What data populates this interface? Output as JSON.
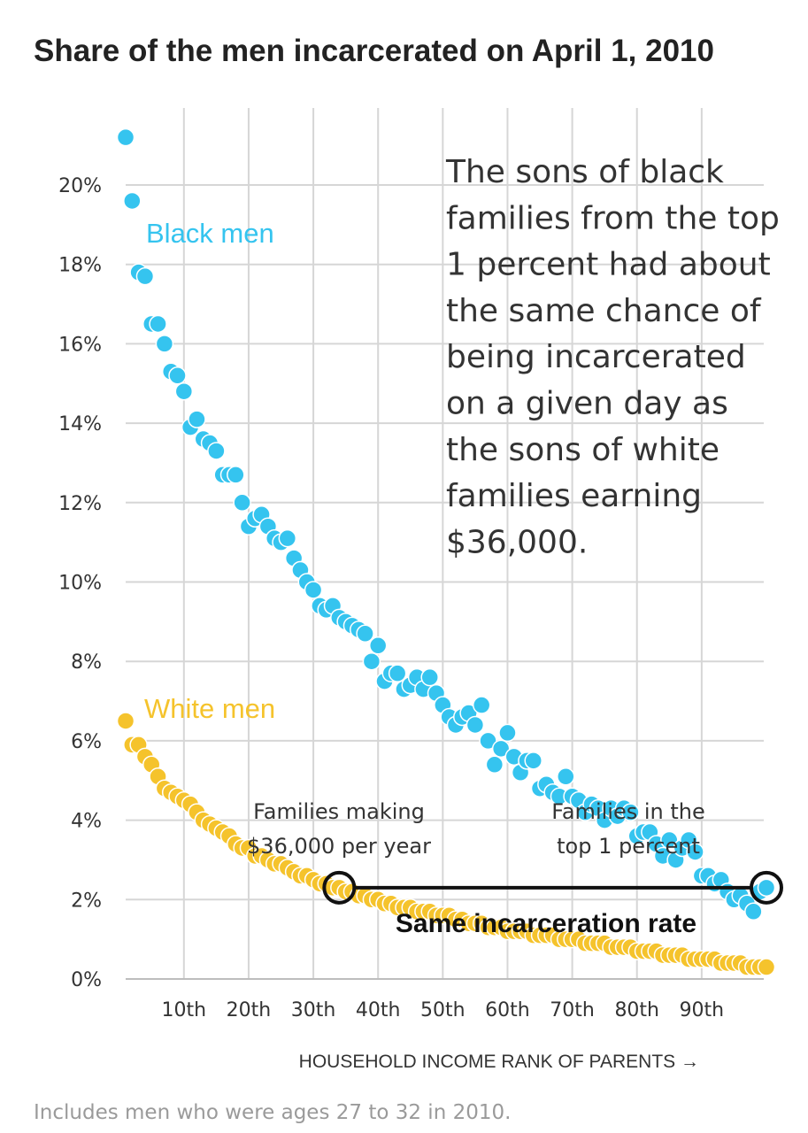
{
  "title": "Share of the men incarcerated on April 1, 2010",
  "footnote": "Includes men who were ages 27 to 32 in 2010.",
  "colors": {
    "black_men": "#35c4ef",
    "white_men": "#f5c32c",
    "grid": "#d6d6d6",
    "text": "#333333"
  },
  "chart_data": {
    "type": "scatter",
    "xlabel": "HOUSEHOLD INCOME RANK OF PARENTS →",
    "ylabel": "",
    "xlim": [
      1,
      100
    ],
    "ylim": [
      0,
      0.22
    ],
    "x_ticks": [
      10,
      20,
      30,
      40,
      50,
      60,
      70,
      80,
      90
    ],
    "x_tick_labels": [
      "10th",
      "20th",
      "30th",
      "40th",
      "50th",
      "60th",
      "70th",
      "80th",
      "90th"
    ],
    "y_ticks": [
      0,
      0.02,
      0.04,
      0.06,
      0.08,
      0.1,
      0.12,
      0.14,
      0.16,
      0.18,
      0.2
    ],
    "y_tick_labels": [
      "0%",
      "2%",
      "4%",
      "6%",
      "8%",
      "10%",
      "12%",
      "14%",
      "16%",
      "18%",
      "20%"
    ],
    "grid": true,
    "series": [
      {
        "name": "Black men",
        "color": "#35c4ef",
        "x": [
          1,
          2,
          3,
          4,
          5,
          6,
          7,
          8,
          9,
          10,
          11,
          12,
          13,
          14,
          15,
          16,
          17,
          18,
          19,
          20,
          21,
          22,
          23,
          24,
          25,
          26,
          27,
          28,
          29,
          30,
          31,
          32,
          33,
          34,
          35,
          36,
          37,
          38,
          39,
          40,
          41,
          42,
          43,
          44,
          45,
          46,
          47,
          48,
          49,
          50,
          51,
          52,
          53,
          54,
          55,
          56,
          57,
          58,
          59,
          60,
          61,
          62,
          63,
          64,
          65,
          66,
          67,
          68,
          69,
          70,
          71,
          72,
          73,
          74,
          75,
          76,
          77,
          78,
          79,
          80,
          81,
          82,
          83,
          84,
          85,
          86,
          87,
          88,
          89,
          90,
          91,
          92,
          93,
          94,
          95,
          96,
          97,
          98,
          99,
          100
        ],
        "y": [
          0.212,
          0.196,
          0.178,
          0.177,
          0.165,
          0.165,
          0.16,
          0.153,
          0.152,
          0.148,
          0.139,
          0.141,
          0.136,
          0.135,
          0.133,
          0.127,
          0.127,
          0.127,
          0.12,
          0.114,
          0.116,
          0.117,
          0.114,
          0.111,
          0.11,
          0.111,
          0.106,
          0.103,
          0.1,
          0.098,
          0.094,
          0.093,
          0.094,
          0.091,
          0.09,
          0.089,
          0.088,
          0.087,
          0.08,
          0.084,
          0.075,
          0.077,
          0.077,
          0.073,
          0.074,
          0.076,
          0.073,
          0.076,
          0.072,
          0.069,
          0.066,
          0.064,
          0.066,
          0.067,
          0.064,
          0.069,
          0.06,
          0.054,
          0.058,
          0.062,
          0.056,
          0.052,
          0.055,
          0.055,
          0.048,
          0.049,
          0.047,
          0.046,
          0.051,
          0.046,
          0.045,
          0.042,
          0.044,
          0.043,
          0.04,
          0.043,
          0.041,
          0.043,
          0.042,
          0.036,
          0.037,
          0.037,
          0.034,
          0.031,
          0.035,
          0.03,
          0.033,
          0.035,
          0.032,
          0.026,
          0.026,
          0.024,
          0.025,
          0.022,
          0.02,
          0.021,
          0.019,
          0.017,
          0.022,
          0.023
        ]
      },
      {
        "name": "White men",
        "color": "#f5c32c",
        "x": [
          1,
          2,
          3,
          4,
          5,
          6,
          7,
          8,
          9,
          10,
          11,
          12,
          13,
          14,
          15,
          16,
          17,
          18,
          19,
          20,
          21,
          22,
          23,
          24,
          25,
          26,
          27,
          28,
          29,
          30,
          31,
          32,
          33,
          34,
          35,
          36,
          37,
          38,
          39,
          40,
          41,
          42,
          43,
          44,
          45,
          46,
          47,
          48,
          49,
          50,
          51,
          52,
          53,
          54,
          55,
          56,
          57,
          58,
          59,
          60,
          61,
          62,
          63,
          64,
          65,
          66,
          67,
          68,
          69,
          70,
          71,
          72,
          73,
          74,
          75,
          76,
          77,
          78,
          79,
          80,
          81,
          82,
          83,
          84,
          85,
          86,
          87,
          88,
          89,
          90,
          91,
          92,
          93,
          94,
          95,
          96,
          97,
          98,
          99,
          100
        ],
        "y": [
          0.065,
          0.059,
          0.059,
          0.056,
          0.054,
          0.051,
          0.048,
          0.047,
          0.046,
          0.045,
          0.044,
          0.042,
          0.04,
          0.039,
          0.038,
          0.037,
          0.036,
          0.034,
          0.033,
          0.033,
          0.031,
          0.031,
          0.03,
          0.029,
          0.029,
          0.028,
          0.027,
          0.026,
          0.026,
          0.025,
          0.024,
          0.024,
          0.023,
          0.023,
          0.022,
          0.022,
          0.021,
          0.021,
          0.02,
          0.02,
          0.019,
          0.019,
          0.018,
          0.018,
          0.018,
          0.017,
          0.017,
          0.017,
          0.016,
          0.016,
          0.016,
          0.015,
          0.015,
          0.014,
          0.014,
          0.014,
          0.013,
          0.013,
          0.013,
          0.012,
          0.012,
          0.012,
          0.012,
          0.011,
          0.011,
          0.011,
          0.011,
          0.01,
          0.01,
          0.01,
          0.01,
          0.009,
          0.009,
          0.009,
          0.009,
          0.008,
          0.008,
          0.008,
          0.008,
          0.007,
          0.007,
          0.007,
          0.007,
          0.006,
          0.006,
          0.006,
          0.006,
          0.005,
          0.005,
          0.005,
          0.005,
          0.005,
          0.004,
          0.004,
          0.004,
          0.004,
          0.003,
          0.003,
          0.003,
          0.003
        ]
      }
    ],
    "annotations": {
      "main_text": [
        "The sons of black",
        "families from the top",
        "1 percent had about",
        "the same chance of",
        "being incarcerated",
        "on a given day as",
        "the sons of white",
        "families earning",
        "$36,000."
      ],
      "black_label": "Black men",
      "white_label": "White men",
      "families_36k": [
        "Families making",
        "$36,000 per year"
      ],
      "families_top1": [
        "Families in the",
        "top 1 percent"
      ],
      "same_rate": "Same incarceration rate",
      "comparison": {
        "x_start": 34,
        "x_end": 100,
        "y": 0.023
      }
    }
  }
}
